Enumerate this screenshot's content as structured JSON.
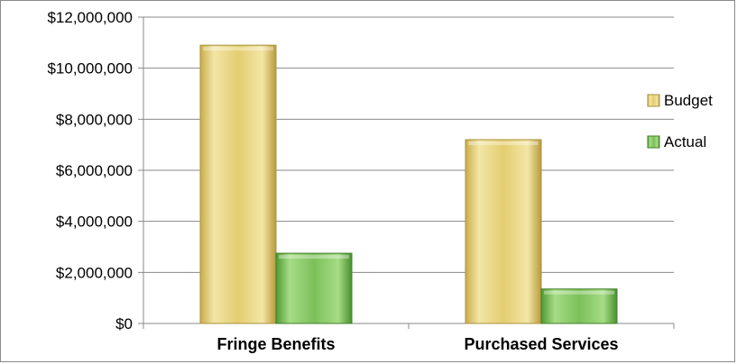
{
  "chart_data": {
    "type": "bar",
    "title": "",
    "xlabel": "",
    "ylabel": "",
    "categories": [
      "Fringe Benefits",
      "Purchased Services"
    ],
    "series": [
      {
        "name": "Budget",
        "values": [
          10900000,
          7200000
        ],
        "color": "#e2cc6a"
      },
      {
        "name": "Actual",
        "values": [
          2750000,
          1350000
        ],
        "color": "#7cc05a"
      }
    ],
    "ylim": [
      0,
      12000000
    ],
    "yticks": [
      0,
      2000000,
      4000000,
      6000000,
      8000000,
      10000000,
      12000000
    ],
    "ytick_labels": [
      "$0",
      "$2,000,000",
      "$4,000,000",
      "$6,000,000",
      "$8,000,000",
      "$10,000,000",
      "$12,000,000"
    ],
    "grid": true,
    "legend_position": "right"
  }
}
